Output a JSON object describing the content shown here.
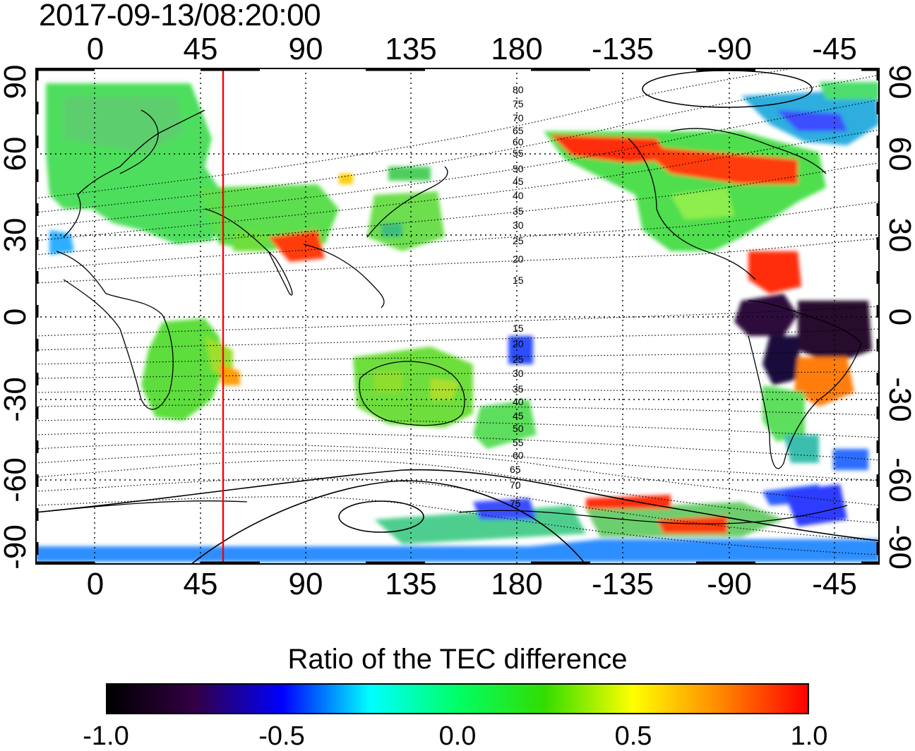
{
  "timestamp": "2017-09-13/08:20:00",
  "map": {
    "lon_ticks": [
      "0",
      "45",
      "90",
      "135",
      "180",
      "-135",
      "-90",
      "-45"
    ],
    "lat_ticks": [
      "90",
      "60",
      "30",
      "0",
      "-30",
      "-60",
      "-90"
    ],
    "geomag_lat_labels_north": [
      "80",
      "75",
      "70",
      "65",
      "60",
      "55",
      "50",
      "45",
      "40",
      "35",
      "30",
      "25",
      "20",
      "15"
    ],
    "geomag_lat_labels_south": [
      "15",
      "20",
      "25",
      "30",
      "35",
      "40",
      "45",
      "50",
      "55",
      "60",
      "65",
      "70",
      "75"
    ],
    "terminator_line_color": "#ff0000",
    "terminator_longitude": 55
  },
  "colorbar": {
    "title": "Ratio of the TEC difference",
    "ticks": [
      "-1.0",
      "-0.5",
      "0.0",
      "0.5",
      "1.0"
    ],
    "min": -1.0,
    "max": 1.0,
    "colors": [
      "#000000",
      "#330044",
      "#0000ff",
      "#00ffff",
      "#00ff66",
      "#33dd00",
      "#ffff00",
      "#ff8800",
      "#ff0000"
    ]
  }
}
